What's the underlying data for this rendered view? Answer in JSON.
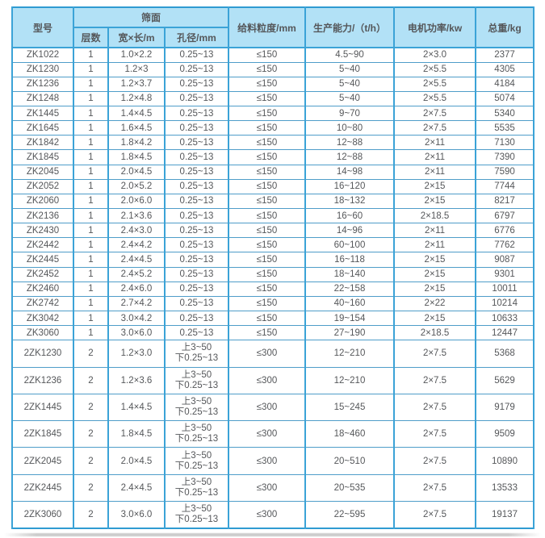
{
  "colors": {
    "header_bg": "#b2e1f6",
    "border_blue": "#3ba3d7",
    "row_line_blue": "#4f9dc9",
    "text": "#55575a",
    "page_bg": "#ffffff"
  },
  "table": {
    "header": {
      "model": "型号",
      "screen_surface": "筛面",
      "layers": "层数",
      "width_length": "宽×长/m",
      "aperture": "孔径/mm",
      "feed_size": "给料粒度/mm",
      "capacity": "生产能力/（t/h）",
      "motor_power": "电机功率/kw",
      "total_weight": "总重/kg"
    },
    "rows": [
      {
        "model": "ZK1022",
        "layers": "1",
        "width_length": "1.0×2.2",
        "aperture": "0.25~13",
        "feed_size": "≤150",
        "capacity": "4.5~90",
        "motor_power": "2×3.0",
        "total_weight": "2377"
      },
      {
        "model": "ZK1230",
        "layers": "1",
        "width_length": "1.2×3",
        "aperture": "0.25~13",
        "feed_size": "≤150",
        "capacity": "5~40",
        "motor_power": "2×5.5",
        "total_weight": "4305"
      },
      {
        "model": "ZK1236",
        "layers": "1",
        "width_length": "1.2×3.7",
        "aperture": "0.25~13",
        "feed_size": "≤150",
        "capacity": "5~40",
        "motor_power": "2×5.5",
        "total_weight": "4184"
      },
      {
        "model": "ZK1248",
        "layers": "1",
        "width_length": "1.2×4.8",
        "aperture": "0.25~13",
        "feed_size": "≤150",
        "capacity": "5~40",
        "motor_power": "2×5.5",
        "total_weight": "5074"
      },
      {
        "model": "ZK1445",
        "layers": "1",
        "width_length": "1.4×4.5",
        "aperture": "0.25~13",
        "feed_size": "≤150",
        "capacity": "9~70",
        "motor_power": "2×7.5",
        "total_weight": "5340"
      },
      {
        "model": "ZK1645",
        "layers": "1",
        "width_length": "1.6×4.5",
        "aperture": "0.25~13",
        "feed_size": "≤150",
        "capacity": "10~80",
        "motor_power": "2×7.5",
        "total_weight": "5535"
      },
      {
        "model": "ZK1842",
        "layers": "1",
        "width_length": "1.8×4.2",
        "aperture": "0.25~13",
        "feed_size": "≤150",
        "capacity": "12~88",
        "motor_power": "2×11",
        "total_weight": "7130"
      },
      {
        "model": "ZK1845",
        "layers": "1",
        "width_length": "1.8×4.5",
        "aperture": "0.25~13",
        "feed_size": "≤150",
        "capacity": "12~88",
        "motor_power": "2×11",
        "total_weight": "7390"
      },
      {
        "model": "ZK2045",
        "layers": "1",
        "width_length": "2.0×4.5",
        "aperture": "0.25~13",
        "feed_size": "≤150",
        "capacity": "14~98",
        "motor_power": "2×11",
        "total_weight": "7590"
      },
      {
        "model": "ZK2052",
        "layers": "1",
        "width_length": "2.0×5.2",
        "aperture": "0.25~13",
        "feed_size": "≤150",
        "capacity": "16~120",
        "motor_power": "2×15",
        "total_weight": "7744"
      },
      {
        "model": "ZK2060",
        "layers": "1",
        "width_length": "2.0×6.0",
        "aperture": "0.25~13",
        "feed_size": "≤150",
        "capacity": "18~132",
        "motor_power": "2×15",
        "total_weight": "8217"
      },
      {
        "model": "ZK2136",
        "layers": "1",
        "width_length": "2.1×3.6",
        "aperture": "0.25~13",
        "feed_size": "≤150",
        "capacity": "16~60",
        "motor_power": "2×18.5",
        "total_weight": "6797"
      },
      {
        "model": "ZK2430",
        "layers": "1",
        "width_length": "2.4×3.0",
        "aperture": "0.25~13",
        "feed_size": "≤150",
        "capacity": "14~96",
        "motor_power": "2×11",
        "total_weight": "6776"
      },
      {
        "model": "ZK2442",
        "layers": "1",
        "width_length": "2.4×4.2",
        "aperture": "0.25~13",
        "feed_size": "≤150",
        "capacity": "60~100",
        "motor_power": "2×11",
        "total_weight": "7762"
      },
      {
        "model": "ZK2445",
        "layers": "1",
        "width_length": "2.4×4.5",
        "aperture": "0.25~13",
        "feed_size": "≤150",
        "capacity": "16~118",
        "motor_power": "2×15",
        "total_weight": "9087"
      },
      {
        "model": "ZK2452",
        "layers": "1",
        "width_length": "2.4×5.2",
        "aperture": "0.25~13",
        "feed_size": "≤150",
        "capacity": "18~140",
        "motor_power": "2×15",
        "total_weight": "9301"
      },
      {
        "model": "ZK2460",
        "layers": "1",
        "width_length": "2.4×6.0",
        "aperture": "0.25~13",
        "feed_size": "≤150",
        "capacity": "22~158",
        "motor_power": "2×15",
        "total_weight": "10011"
      },
      {
        "model": "ZK2742",
        "layers": "1",
        "width_length": "2.7×4.2",
        "aperture": "0.25~13",
        "feed_size": "≤150",
        "capacity": "40~160",
        "motor_power": "2×22",
        "total_weight": "10214"
      },
      {
        "model": "ZK3042",
        "layers": "1",
        "width_length": "3.0×4.2",
        "aperture": "0.25~13",
        "feed_size": "≤150",
        "capacity": "19~154",
        "motor_power": "2×15",
        "total_weight": "10633"
      },
      {
        "model": "ZK3060",
        "layers": "1",
        "width_length": "3.0×6.0",
        "aperture": "0.25~13",
        "feed_size": "≤150",
        "capacity": "27~190",
        "motor_power": "2×18.5",
        "total_weight": "12447"
      },
      {
        "model": "2ZK1230",
        "layers": "2",
        "width_length": "1.2×3.0",
        "aperture_line1": "上3~50",
        "aperture_line2": "下0.25~13",
        "feed_size": "≤300",
        "capacity": "12~210",
        "motor_power": "2×7.5",
        "total_weight": "5368"
      },
      {
        "model": "2ZK1236",
        "layers": "2",
        "width_length": "1.2×3.6",
        "aperture_line1": "上3~50",
        "aperture_line2": "下0.25~13",
        "feed_size": "≤300",
        "capacity": "12~210",
        "motor_power": "2×7.5",
        "total_weight": "5629"
      },
      {
        "model": "2ZK1445",
        "layers": "2",
        "width_length": "1.4×4.5",
        "aperture_line1": "上3~50",
        "aperture_line2": "下0.25~13",
        "feed_size": "≤300",
        "capacity": "15~245",
        "motor_power": "2×7.5",
        "total_weight": "9179"
      },
      {
        "model": "2ZK1845",
        "layers": "2",
        "width_length": "1.8×4.5",
        "aperture_line1": "上3~50",
        "aperture_line2": "下0.25~13",
        "feed_size": "≤300",
        "capacity": "18~460",
        "motor_power": "2×7.5",
        "total_weight": "9509"
      },
      {
        "model": "2ZK2045",
        "layers": "2",
        "width_length": "2.0×4.5",
        "aperture_line1": "上3~50",
        "aperture_line2": "下0.25~13",
        "feed_size": "≤300",
        "capacity": "20~510",
        "motor_power": "2×7.5",
        "total_weight": "10890"
      },
      {
        "model": "2ZK2445",
        "layers": "2",
        "width_length": "2.4×4.5",
        "aperture_line1": "上3~50",
        "aperture_line2": "下0.25~13",
        "feed_size": "≤300",
        "capacity": "20~535",
        "motor_power": "2×7.5",
        "total_weight": "13533"
      },
      {
        "model": "2ZK3060",
        "layers": "2",
        "width_length": "3.0×6.0",
        "aperture_line1": "上3~50",
        "aperture_line2": "下0.25~13",
        "feed_size": "≤300",
        "capacity": "22~595",
        "motor_power": "2×7.5",
        "total_weight": "19137"
      }
    ]
  }
}
